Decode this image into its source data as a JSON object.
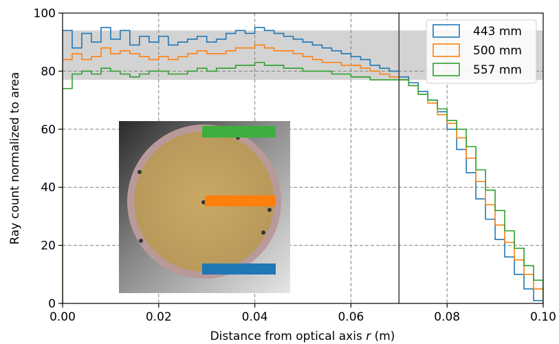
{
  "chart_data": {
    "type": "line",
    "xlabel": "Distance from optical axis r (m)",
    "xlabel_parts": {
      "prefix": "Distance from optical axis ",
      "var": "r",
      "suffix": " (m)"
    },
    "ylabel": "Ray count normalized to area",
    "xlim": [
      0,
      0.1
    ],
    "ylim": [
      0,
      100
    ],
    "x_ticks": [
      0.0,
      0.02,
      0.04,
      0.06,
      0.08,
      0.1
    ],
    "x_tick_labels": [
      "0.00",
      "0.02",
      "0.04",
      "0.06",
      "0.08",
      "0.10"
    ],
    "y_ticks": [
      0,
      20,
      40,
      60,
      80,
      100
    ],
    "y_tick_labels": [
      "0",
      "20",
      "40",
      "60",
      "80",
      "100"
    ],
    "grid": true,
    "legend_position": "top-right",
    "shaded_band_y": [
      77,
      94
    ],
    "vertical_line_x": 0.07,
    "x_bins": [
      0.0,
      0.002,
      0.004,
      0.006,
      0.008,
      0.01,
      0.012,
      0.014,
      0.016,
      0.018,
      0.02,
      0.022,
      0.024,
      0.026,
      0.028,
      0.03,
      0.032,
      0.034,
      0.036,
      0.038,
      0.04,
      0.042,
      0.044,
      0.046,
      0.048,
      0.05,
      0.052,
      0.054,
      0.056,
      0.058,
      0.06,
      0.062,
      0.064,
      0.066,
      0.068,
      0.07,
      0.072,
      0.074,
      0.076,
      0.078,
      0.08,
      0.082,
      0.084,
      0.086,
      0.088,
      0.09,
      0.092,
      0.094,
      0.096,
      0.098,
      0.1
    ],
    "series": [
      {
        "name": "443 mm",
        "color": "#1f77b4",
        "values": [
          94,
          88,
          93,
          90,
          95,
          91,
          94,
          89,
          92,
          90,
          92,
          89,
          90,
          91,
          92,
          90,
          91,
          93,
          94,
          93,
          95,
          94,
          93,
          92,
          91,
          90,
          89,
          88,
          87,
          86,
          85,
          84,
          82,
          81,
          80,
          78,
          76,
          73,
          70,
          66,
          60,
          53,
          45,
          36,
          29,
          22,
          16,
          10,
          5,
          1
        ]
      },
      {
        "name": "500 mm",
        "color": "#ff7f0e",
        "values": [
          84,
          86,
          84,
          85,
          88,
          86,
          87,
          86,
          85,
          84,
          85,
          84,
          85,
          86,
          87,
          86,
          86,
          87,
          88,
          88,
          89,
          88,
          87,
          87,
          86,
          85,
          84,
          83,
          83,
          82,
          82,
          81,
          80,
          79,
          78,
          77,
          75,
          72,
          69,
          65,
          62,
          57,
          50,
          42,
          34,
          27,
          21,
          15,
          10,
          5
        ]
      },
      {
        "name": "557 mm",
        "color": "#2ca02c",
        "values": [
          74,
          79,
          80,
          79,
          81,
          80,
          79,
          78,
          79,
          80,
          80,
          79,
          79,
          80,
          81,
          80,
          81,
          81,
          82,
          82,
          83,
          82,
          82,
          81,
          81,
          80,
          80,
          80,
          79,
          79,
          78,
          78,
          77,
          77,
          77,
          77,
          75,
          72,
          70,
          67,
          63,
          60,
          54,
          46,
          39,
          32,
          25,
          19,
          13,
          8
        ]
      }
    ]
  },
  "inset": {
    "image_subject": "circular sample holder with three colored bars",
    "bar_colors": [
      "#3fae3f",
      "#ff7f0e",
      "#1f77b4"
    ]
  }
}
